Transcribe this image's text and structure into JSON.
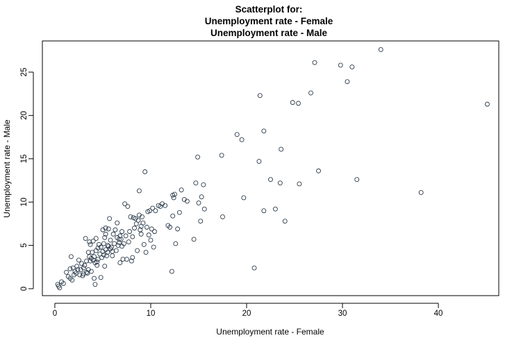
{
  "chart_data": {
    "type": "scatter",
    "title_lines": [
      "Scatterplot for:",
      "Unemployment rate - Female",
      "Unemployment rate - Male"
    ],
    "xlabel": "Unemployment rate - Female",
    "ylabel": "Unemployment rate - Male",
    "xlim": [
      -1.3,
      46.3
    ],
    "ylim": [
      -0.8,
      28.6
    ],
    "xticks": [
      0,
      10,
      20,
      30,
      40
    ],
    "yticks": [
      0,
      5,
      10,
      15,
      20,
      25
    ],
    "grid": false,
    "legend": "none",
    "point_color": "#2b3a4a",
    "points": [
      [
        0.3,
        0.5
      ],
      [
        0.4,
        0.3
      ],
      [
        0.5,
        0.1
      ],
      [
        0.7,
        0.8
      ],
      [
        0.9,
        0.6
      ],
      [
        1.2,
        1.9
      ],
      [
        1.4,
        1.4
      ],
      [
        1.6,
        2.3
      ],
      [
        1.6,
        1.2
      ],
      [
        1.7,
        3.7
      ],
      [
        1.8,
        1.0
      ],
      [
        1.9,
        2.4
      ],
      [
        2.0,
        1.6
      ],
      [
        2.1,
        2.0
      ],
      [
        2.2,
        1.8
      ],
      [
        2.3,
        2.6
      ],
      [
        2.4,
        2.2
      ],
      [
        2.5,
        3.3
      ],
      [
        2.6,
        1.6
      ],
      [
        2.7,
        2.2
      ],
      [
        2.8,
        2.9
      ],
      [
        2.9,
        1.5
      ],
      [
        3.0,
        2.4
      ],
      [
        3.0,
        1.7
      ],
      [
        3.1,
        2.7
      ],
      [
        3.2,
        5.8
      ],
      [
        3.3,
        1.9
      ],
      [
        3.3,
        3.2
      ],
      [
        3.4,
        1.8
      ],
      [
        3.5,
        4.2
      ],
      [
        3.5,
        2.2
      ],
      [
        3.6,
        5.4
      ],
      [
        3.6,
        3.7
      ],
      [
        3.7,
        3.2
      ],
      [
        3.7,
        5.1
      ],
      [
        3.8,
        3.5
      ],
      [
        3.8,
        2.0
      ],
      [
        3.9,
        4.2
      ],
      [
        4.0,
        3.3
      ],
      [
        4.0,
        5.5
      ],
      [
        4.1,
        3.7
      ],
      [
        4.1,
        1.2
      ],
      [
        4.2,
        3.0
      ],
      [
        4.2,
        0.5
      ],
      [
        4.3,
        4.4
      ],
      [
        4.3,
        5.8
      ],
      [
        4.4,
        2.7
      ],
      [
        4.4,
        3.1
      ],
      [
        4.5,
        4.7
      ],
      [
        4.5,
        3.4
      ],
      [
        4.6,
        5.1
      ],
      [
        4.7,
        4.0
      ],
      [
        4.8,
        4.8
      ],
      [
        4.8,
        1.3
      ],
      [
        4.9,
        3.6
      ],
      [
        5.0,
        4.3
      ],
      [
        5.0,
        6.8
      ],
      [
        5.1,
        5.2
      ],
      [
        5.1,
        3.9
      ],
      [
        5.2,
        5.9
      ],
      [
        5.2,
        2.6
      ],
      [
        5.3,
        4.5
      ],
      [
        5.3,
        6.3
      ],
      [
        5.4,
        3.8
      ],
      [
        5.5,
        5.0
      ],
      [
        5.5,
        4.2
      ],
      [
        5.6,
        6.9
      ],
      [
        5.6,
        4.9
      ],
      [
        5.7,
        8.1
      ],
      [
        5.8,
        4.6
      ],
      [
        5.8,
        5.6
      ],
      [
        5.9,
        4.8
      ],
      [
        6.0,
        4.3
      ],
      [
        6.0,
        3.8
      ],
      [
        6.1,
        6.3
      ],
      [
        6.2,
        5.2
      ],
      [
        6.3,
        6.8
      ],
      [
        6.4,
        4.4
      ],
      [
        6.5,
        7.6
      ],
      [
        6.5,
        5.9
      ],
      [
        6.6,
        5.0
      ],
      [
        6.7,
        5.3
      ],
      [
        6.8,
        6.1
      ],
      [
        6.8,
        3.0
      ],
      [
        6.9,
        5.7
      ],
      [
        7.0,
        6.6
      ],
      [
        7.0,
        4.9
      ],
      [
        7.1,
        3.4
      ],
      [
        7.2,
        5.2
      ],
      [
        7.3,
        9.8
      ],
      [
        7.4,
        6.1
      ],
      [
        7.5,
        3.4
      ],
      [
        7.6,
        9.5
      ],
      [
        7.7,
        5.4
      ],
      [
        7.8,
        6.6
      ],
      [
        7.9,
        8.3
      ],
      [
        8.0,
        3.2
      ],
      [
        8.1,
        3.6
      ],
      [
        8.1,
        6.0
      ],
      [
        8.2,
        8.2
      ],
      [
        8.3,
        7.0
      ],
      [
        8.4,
        8.1
      ],
      [
        8.5,
        7.5
      ],
      [
        8.6,
        4.4
      ],
      [
        8.7,
        7.9
      ],
      [
        8.8,
        8.5
      ],
      [
        8.8,
        11.3
      ],
      [
        8.9,
        6.8
      ],
      [
        9.0,
        7.2
      ],
      [
        9.0,
        6.3
      ],
      [
        9.1,
        8.3
      ],
      [
        9.2,
        7.6
      ],
      [
        9.3,
        5.1
      ],
      [
        9.4,
        13.5
      ],
      [
        9.5,
        4.2
      ],
      [
        9.6,
        7.1
      ],
      [
        9.7,
        8.9
      ],
      [
        9.8,
        6.2
      ],
      [
        9.9,
        9.0
      ],
      [
        10.0,
        5.6
      ],
      [
        10.1,
        6.9
      ],
      [
        10.2,
        9.3
      ],
      [
        10.3,
        4.8
      ],
      [
        10.4,
        6.6
      ],
      [
        10.5,
        9.0
      ],
      [
        10.8,
        9.6
      ],
      [
        11.0,
        9.5
      ],
      [
        11.2,
        9.8
      ],
      [
        11.5,
        9.6
      ],
      [
        11.8,
        7.3
      ],
      [
        12.0,
        7.1
      ],
      [
        12.2,
        2.0
      ],
      [
        12.3,
        8.4
      ],
      [
        12.4,
        10.5
      ],
      [
        12.5,
        10.9
      ],
      [
        12.6,
        5.2
      ],
      [
        12.8,
        6.9
      ],
      [
        13.0,
        8.8
      ],
      [
        13.2,
        11.4
      ],
      [
        13.5,
        10.3
      ],
      [
        13.8,
        10.1
      ],
      [
        14.5,
        5.7
      ],
      [
        14.7,
        12.2
      ],
      [
        14.9,
        15.2
      ],
      [
        15.0,
        9.9
      ],
      [
        15.2,
        7.8
      ],
      [
        15.3,
        10.6
      ],
      [
        15.5,
        12.0
      ],
      [
        15.6,
        9.2
      ],
      [
        17.4,
        15.4
      ],
      [
        17.5,
        8.3
      ],
      [
        19.0,
        17.8
      ],
      [
        19.5,
        17.2
      ],
      [
        19.7,
        10.5
      ],
      [
        20.8,
        2.4
      ],
      [
        21.3,
        14.7
      ],
      [
        21.4,
        22.3
      ],
      [
        21.8,
        18.2
      ],
      [
        22.5,
        12.6
      ],
      [
        23.0,
        9.2
      ],
      [
        23.5,
        12.2
      ],
      [
        23.6,
        16.1
      ],
      [
        24.0,
        7.8
      ],
      [
        24.8,
        21.5
      ],
      [
        25.4,
        21.4
      ],
      [
        25.5,
        12.1
      ],
      [
        26.7,
        22.6
      ],
      [
        27.1,
        26.1
      ],
      [
        27.5,
        13.6
      ],
      [
        29.8,
        25.8
      ],
      [
        30.5,
        23.9
      ],
      [
        31.0,
        25.6
      ],
      [
        31.5,
        12.6
      ],
      [
        34.0,
        27.6
      ],
      [
        38.2,
        11.1
      ],
      [
        45.1,
        21.3
      ],
      [
        21.8,
        9.0
      ],
      [
        12.3,
        10.8
      ],
      [
        5.3,
        7.0
      ],
      [
        6.7,
        5.7
      ]
    ]
  }
}
